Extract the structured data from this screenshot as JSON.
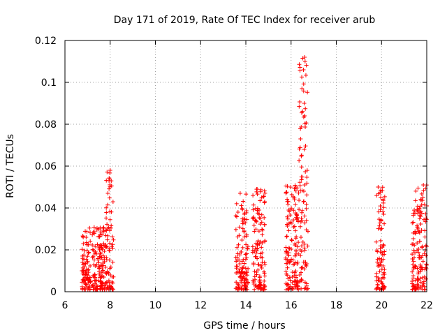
{
  "chart_data": {
    "type": "scatter",
    "title": "Day 171 of 2019, Rate Of TEC Index for receiver arub",
    "xlabel": "GPS time / hours",
    "ylabel": "ROTI / TECUs",
    "xlim": [
      6,
      22
    ],
    "ylim": [
      0,
      0.12
    ],
    "x_ticks": [
      6,
      8,
      10,
      12,
      14,
      16,
      18,
      20,
      22
    ],
    "x_tick_labels": [
      "6",
      "8",
      "10",
      "12",
      "14",
      "16",
      "18",
      "20",
      "22"
    ],
    "y_ticks": [
      0,
      0.02,
      0.04,
      0.06,
      0.08,
      0.1,
      0.12
    ],
    "y_tick_labels": [
      "0",
      "0.02",
      "0.04",
      "0.06",
      "0.08",
      "0.1",
      "0.12"
    ],
    "grid": true,
    "marker": "+",
    "marker_color": "#ff0000",
    "clusters": [
      {
        "x_start": 6.75,
        "x_end": 7.15,
        "y_max": 0.031
      },
      {
        "x_start": 7.2,
        "x_end": 7.75,
        "y_max": 0.032
      },
      {
        "x_start": 7.8,
        "x_end": 8.15,
        "y_max": 0.058
      },
      {
        "x_start": 13.55,
        "x_end": 14.1,
        "y_max": 0.047
      },
      {
        "x_start": 14.3,
        "x_end": 14.85,
        "y_max": 0.049
      },
      {
        "x_start": 15.75,
        "x_end": 16.35,
        "y_max": 0.052
      },
      {
        "x_start": 16.35,
        "x_end": 16.75,
        "y_max": 0.112
      },
      {
        "x_start": 19.75,
        "x_end": 20.15,
        "y_max": 0.05
      },
      {
        "x_start": 21.35,
        "x_end": 22.0,
        "y_max": 0.051
      }
    ],
    "outliers": [
      {
        "x": 8.0,
        "y": 0.058
      },
      {
        "x": 7.95,
        "y": 0.053
      },
      {
        "x": 7.9,
        "y": 0.047
      },
      {
        "x": 16.6,
        "y": 0.112
      },
      {
        "x": 16.62,
        "y": 0.11
      },
      {
        "x": 16.55,
        "y": 0.106
      },
      {
        "x": 16.58,
        "y": 0.09
      },
      {
        "x": 16.6,
        "y": 0.084
      },
      {
        "x": 16.58,
        "y": 0.068
      },
      {
        "x": 16.6,
        "y": 0.051
      },
      {
        "x": 16.2,
        "y": 0.05
      },
      {
        "x": 14.7,
        "y": 0.045
      },
      {
        "x": 14.5,
        "y": 0.049
      },
      {
        "x": 13.75,
        "y": 0.047
      },
      {
        "x": 19.85,
        "y": 0.05
      },
      {
        "x": 21.85,
        "y": 0.051
      },
      {
        "x": 22.0,
        "y": 0.041
      }
    ]
  }
}
